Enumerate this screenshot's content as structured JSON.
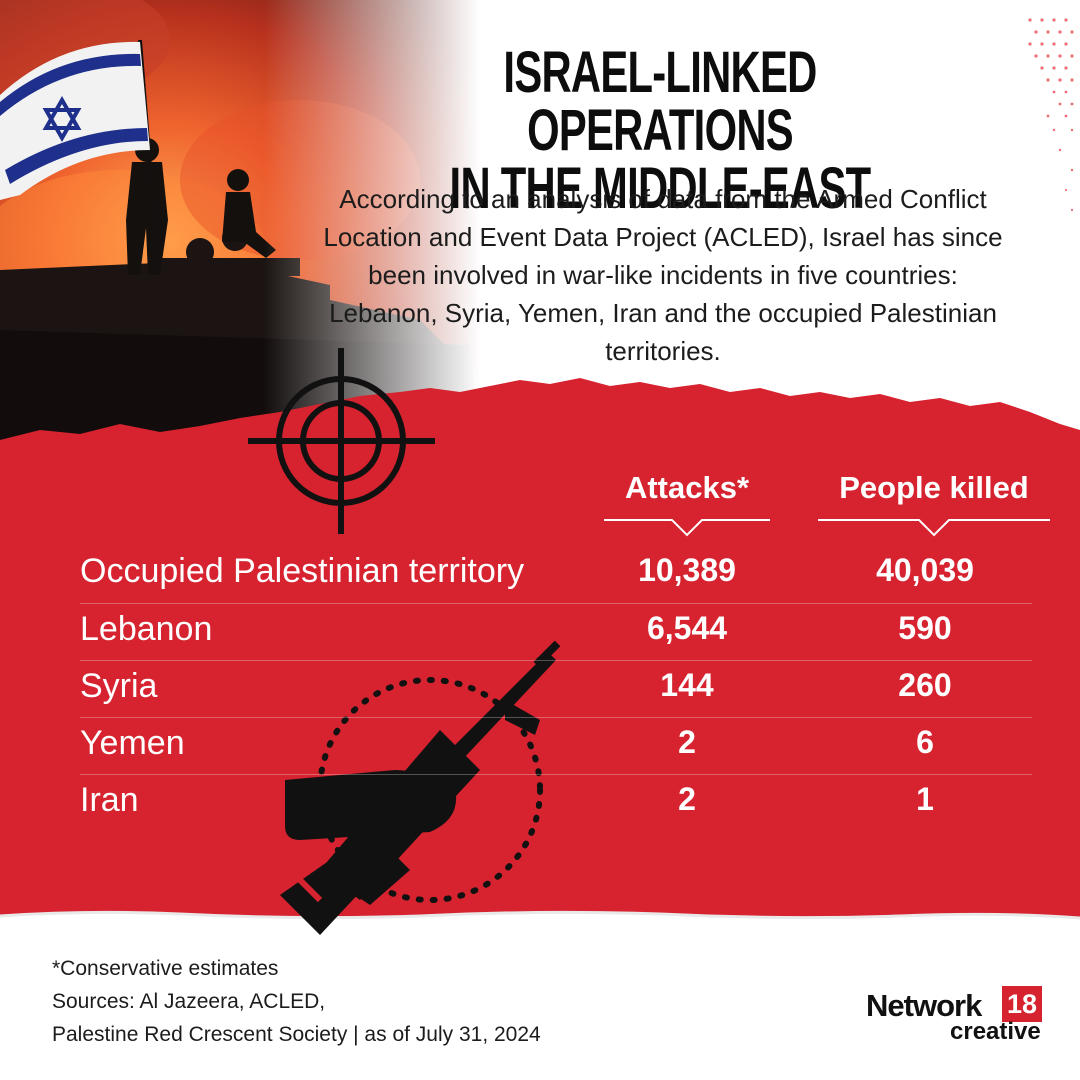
{
  "header": {
    "title_line1": "ISRAEL-LINKED OPERATIONS",
    "title_line2": "IN THE MIDDLE-EAST",
    "intro": "According to an analysis of data from the Armed Conflict Location and Event Data Project (ACLED), Israel has since been involved in war-like incidents in five countries: Lebanon, Syria, Yemen, Iran and the occupied Palestinian territories."
  },
  "table": {
    "col_attacks": "Attacks*",
    "col_killed": "People killed",
    "rows": [
      {
        "country": "Occupied Palestinian territory",
        "attacks": "10,389",
        "killed": "40,039"
      },
      {
        "country": "Lebanon",
        "attacks": "6,544",
        "killed": "590"
      },
      {
        "country": "Syria",
        "attacks": "144",
        "killed": "260"
      },
      {
        "country": "Yemen",
        "attacks": "2",
        "killed": "6"
      },
      {
        "country": "Iran",
        "attacks": "2",
        "killed": "1"
      }
    ]
  },
  "footer": {
    "note": "*Conservative estimates",
    "sources_line1": "Sources: Al Jazeera, ACLED,",
    "sources_line2": "Palestine Red Crescent Society | as of July 31, 2024"
  },
  "logo": {
    "brand": "Network",
    "badge": "18",
    "sub": "creative"
  },
  "colors": {
    "accent_red": "#d7232f",
    "text_dark": "#1a1a1a",
    "white": "#ffffff"
  },
  "icons": [
    "israel-flag-icon",
    "crosshair-icon",
    "rifle-hand-icon"
  ]
}
